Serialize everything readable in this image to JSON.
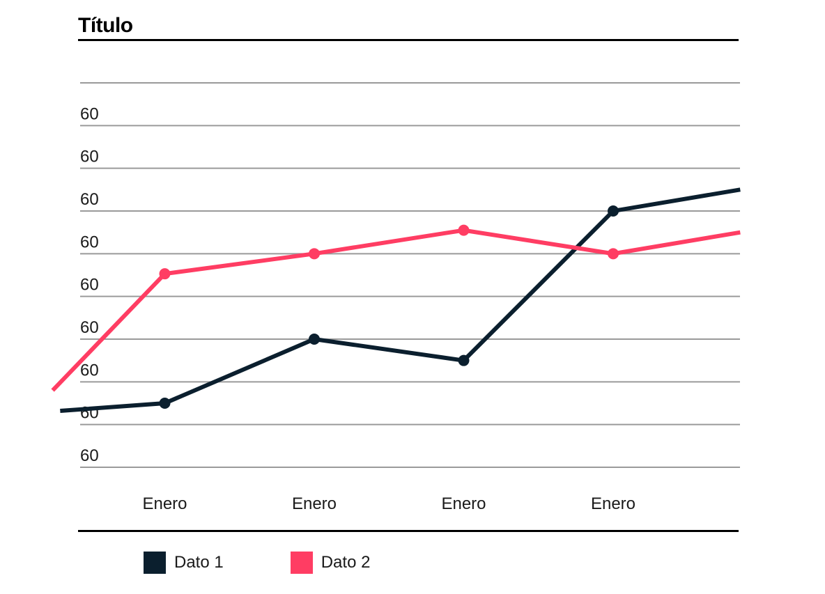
{
  "chart_data": {
    "type": "line",
    "title": "Título",
    "y_tick_labels": [
      "60",
      "60",
      "60",
      "60",
      "60",
      "60",
      "60",
      "60",
      "60"
    ],
    "categories": [
      "Enero",
      "Enero",
      "Enero",
      "Enero"
    ],
    "grid": true,
    "legend_position": "bottom-left",
    "series": [
      {
        "name": "Dato 1",
        "color": "#0b1f2e",
        "points": [
          {
            "x": 0.3,
            "y": 1.32
          },
          {
            "x": 1,
            "y": 1.5
          },
          {
            "x": 2,
            "y": 3
          },
          {
            "x": 3,
            "y": 2.5
          },
          {
            "x": 4,
            "y": 6
          },
          {
            "x": 4.85,
            "y": 6.5
          }
        ],
        "markers": [
          1,
          2,
          3,
          4
        ]
      },
      {
        "name": "Dato 2",
        "color": "#ff3d63",
        "points": [
          {
            "x": 0.25,
            "y": 1.8
          },
          {
            "x": 1,
            "y": 4.53
          },
          {
            "x": 2,
            "y": 5
          },
          {
            "x": 3,
            "y": 5.55
          },
          {
            "x": 4,
            "y": 5
          },
          {
            "x": 4.85,
            "y": 5.5
          }
        ],
        "markers": [
          1,
          2,
          3,
          4
        ]
      }
    ]
  }
}
